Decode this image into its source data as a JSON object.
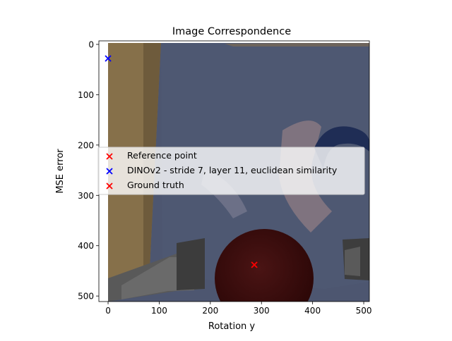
{
  "chart_data": {
    "type": "scatter",
    "title": "Image Correspondence",
    "xlabel": "Rotation y",
    "ylabel": "MSE error",
    "xlim": [
      -18,
      511
    ],
    "ylim": [
      511,
      -7
    ],
    "y_inverted": true,
    "x_ticks": [
      0,
      100,
      200,
      300,
      400,
      500
    ],
    "y_ticks": [
      0,
      100,
      200,
      300,
      400,
      500
    ],
    "grid": false,
    "legend_position": "center",
    "background": "image",
    "series": [
      {
        "name": "Reference point",
        "marker": "x",
        "color": "#ff0000",
        "points": []
      },
      {
        "name": "DINOv2 - stride 7, layer 11, euclidean similarity",
        "marker": "x",
        "color": "#0000ff",
        "points": [
          [
            0,
            28
          ]
        ]
      },
      {
        "name": "Ground truth",
        "marker": "x",
        "color": "#ff0000",
        "points": [
          [
            286,
            438
          ]
        ]
      }
    ]
  }
}
